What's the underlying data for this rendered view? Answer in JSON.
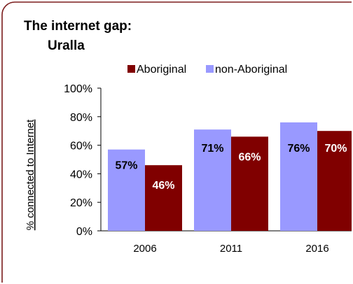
{
  "chart_data": {
    "type": "bar",
    "title_line1": "The internet gap:",
    "title_line2": "Uralla",
    "ylabel": "% connected to Internet",
    "xlabel": "",
    "categories": [
      "2006",
      "2011",
      "2016"
    ],
    "series": [
      {
        "name": "non-Aboriginal",
        "color": "#9999ff",
        "values": [
          57,
          71,
          76
        ],
        "labels": [
          "57%",
          "71%",
          "76%"
        ],
        "label_color": "#000000"
      },
      {
        "name": "Aboriginal",
        "color": "#800000",
        "values": [
          46,
          66,
          70
        ],
        "labels": [
          "46%",
          "66%",
          "70%"
        ],
        "label_color": "#ffffff"
      }
    ],
    "legend_order": [
      "Aboriginal",
      "non-Aboriginal"
    ],
    "legend_position": "top",
    "ylim": [
      0,
      100
    ],
    "yticks": [
      "0%",
      "20%",
      "40%",
      "60%",
      "80%",
      "100%"
    ],
    "ytick_values": [
      0,
      20,
      40,
      60,
      80,
      100
    ],
    "grid": false,
    "border_color": "#7b1c1c"
  }
}
